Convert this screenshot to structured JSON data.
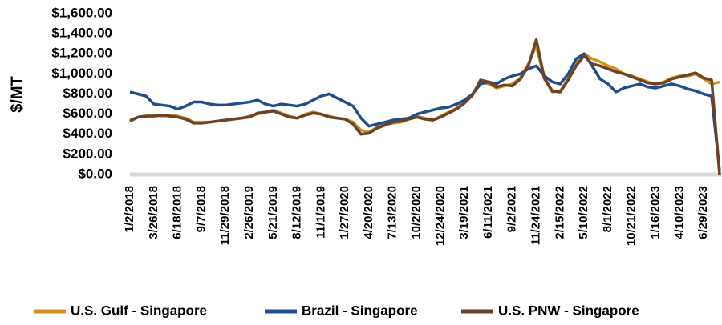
{
  "chart_data": {
    "type": "line",
    "y_label": "$/MT",
    "categories": [
      "1/2/2018",
      null,
      null,
      "3/26/2018",
      null,
      null,
      "6/18/2018",
      null,
      null,
      "9/7/2018",
      null,
      null,
      "11/29/2018",
      null,
      null,
      "2/26/2019",
      null,
      null,
      "5/21/2019",
      null,
      null,
      "8/12/2019",
      null,
      null,
      "11/1/2019",
      null,
      null,
      "1/27/2020",
      null,
      null,
      "4/20/2020",
      null,
      null,
      "7/13/2020",
      null,
      null,
      "10/2/2020",
      null,
      null,
      "12/24/2020",
      null,
      null,
      "3/19/2021",
      null,
      null,
      "6/11/2021",
      null,
      null,
      "9/2/2021",
      null,
      null,
      "11/24/2021",
      null,
      null,
      "2/15/2022",
      null,
      null,
      "5/10/2022",
      null,
      null,
      "8/1/2022",
      null,
      null,
      "10/21/2022",
      null,
      null,
      "1/16/2023",
      null,
      null,
      "4/10/2023",
      null,
      null,
      "6/29/2023",
      null,
      null
    ],
    "series": [
      {
        "name": "U.S. Gulf - Singapore",
        "color": "#d4901e",
        "values": [
          540,
          570,
          580,
          590,
          580,
          590,
          580,
          560,
          520,
          520,
          520,
          530,
          540,
          550,
          560,
          580,
          600,
          620,
          640,
          610,
          580,
          560,
          600,
          620,
          600,
          580,
          560,
          550,
          520,
          440,
          420,
          470,
          500,
          510,
          520,
          550,
          580,
          560,
          540,
          580,
          620,
          660,
          720,
          800,
          920,
          900,
          860,
          880,
          900,
          960,
          1100,
          1280,
          950,
          820,
          830,
          950,
          1100,
          1200,
          1150,
          1120,
          1080,
          1050,
          1000,
          980,
          950,
          920,
          900,
          920,
          960,
          980,
          980,
          1000,
          950,
          900,
          920
        ]
      },
      {
        "name": "Brazil - Singapore",
        "color": "#1f4e8c",
        "values": [
          820,
          800,
          780,
          700,
          690,
          680,
          650,
          680,
          720,
          720,
          700,
          690,
          690,
          700,
          710,
          720,
          740,
          700,
          680,
          700,
          690,
          680,
          700,
          740,
          780,
          800,
          760,
          720,
          680,
          560,
          480,
          500,
          520,
          540,
          550,
          560,
          600,
          620,
          640,
          660,
          670,
          700,
          740,
          800,
          900,
          920,
          900,
          950,
          980,
          1000,
          1050,
          1080,
          980,
          920,
          900,
          1000,
          1150,
          1200,
          1080,
          950,
          900,
          820,
          860,
          880,
          900,
          870,
          860,
          880,
          900,
          880,
          850,
          830,
          800,
          780,
          40
        ]
      },
      {
        "name": "U.S. PNW - Singapore",
        "color": "#6b4226",
        "values": [
          530,
          570,
          580,
          580,
          590,
          580,
          570,
          550,
          510,
          510,
          520,
          530,
          540,
          550,
          560,
          570,
          610,
          620,
          630,
          600,
          570,
          560,
          590,
          610,
          600,
          570,
          560,
          550,
          500,
          400,
          410,
          460,
          490,
          520,
          530,
          550,
          570,
          550,
          540,
          570,
          610,
          650,
          710,
          790,
          940,
          920,
          870,
          890,
          880,
          950,
          1080,
          1340,
          960,
          830,
          820,
          940,
          1080,
          1180,
          1100,
          1080,
          1050,
          1020,
          1000,
          970,
          940,
          910,
          900,
          910,
          950,
          970,
          990,
          1010,
          960,
          940,
          0
        ]
      }
    ],
    "ylim": [
      0,
      1600
    ],
    "yticks": [
      {
        "value": 0,
        "label": "$0.00"
      },
      {
        "value": 200,
        "label": "$200.00"
      },
      {
        "value": 400,
        "label": "$400.00"
      },
      {
        "value": 600,
        "label": "$600.00"
      },
      {
        "value": 800,
        "label": "$800.00"
      },
      {
        "value": 1000,
        "label": "$1,000.00"
      },
      {
        "value": 1200,
        "label": "$1,200.00"
      },
      {
        "value": 1400,
        "label": "$1,400.00"
      },
      {
        "value": 1600,
        "label": "$1,600.00"
      }
    ],
    "grid": false,
    "legend": "bottom"
  }
}
